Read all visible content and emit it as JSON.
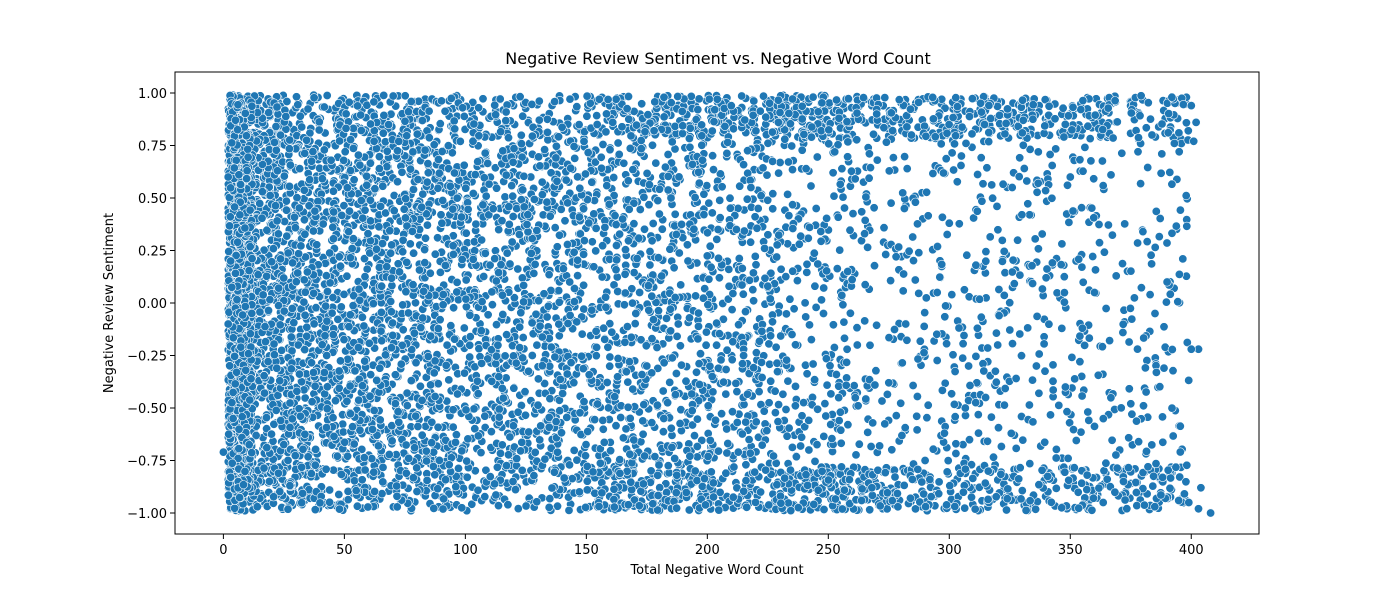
{
  "chart_data": {
    "type": "scatter",
    "title": "Negative Review Sentiment vs. Negative Word Count",
    "xlabel": "Total Negative Word Count",
    "ylabel": "Negative Review Sentiment",
    "xlim": [
      -20,
      428
    ],
    "ylim": [
      -1.1,
      1.1
    ],
    "xticks": [
      0,
      50,
      100,
      150,
      200,
      250,
      300,
      350,
      400
    ],
    "yticks": [
      -1.0,
      -0.75,
      -0.5,
      -0.25,
      0.0,
      0.25,
      0.5,
      0.75,
      1.0
    ],
    "xtick_labels": [
      "0",
      "50",
      "100",
      "150",
      "200",
      "250",
      "300",
      "350",
      "400"
    ],
    "ytick_labels": [
      "−1.00",
      "−0.75",
      "−0.50",
      "−0.25",
      "0.00",
      "0.25",
      "0.50",
      "0.75",
      "1.00"
    ],
    "grid": false,
    "marker_color": "#1f77b4",
    "marker_edge_color": "#ffffff",
    "series": [
      {
        "points": [
          [
            0,
            -0.71
          ],
          [
            408,
            -1.0
          ],
          [
            403,
            -0.22
          ],
          [
            400,
            -0.22
          ],
          [
            402,
            0.86
          ],
          [
            401,
            0.77
          ],
          [
            400,
            0.94
          ],
          [
            395,
            0.72
          ],
          [
            390,
            0.1
          ],
          [
            392,
            0.98
          ],
          [
            403,
            -0.98
          ],
          [
            404,
            -0.88
          ],
          [
            399,
            -0.95
          ],
          [
            14,
            -0.97
          ],
          [
            3,
            -0.83
          ],
          [
            5,
            0.87
          ],
          [
            4,
            -0.55
          ],
          [
            2,
            0.6
          ],
          [
            3,
            0.2
          ],
          [
            2,
            -0.1
          ],
          [
            385,
            -0.05
          ],
          [
            383,
            0.04
          ],
          [
            380,
            0.34
          ],
          [
            378,
            0.72
          ],
          [
            375,
            -0.48
          ],
          [
            372,
            -0.85
          ],
          [
            360,
            0.05
          ],
          [
            355,
            -0.12
          ],
          [
            350,
            0.6
          ],
          [
            348,
            -0.4
          ],
          [
            340,
            0.12
          ],
          [
            336,
            -0.3
          ],
          [
            330,
            0.42
          ],
          [
            326,
            0.55
          ],
          [
            320,
            -0.2
          ],
          [
            315,
            -0.45
          ],
          [
            311,
            0.18
          ],
          [
            308,
            -0.3
          ],
          [
            305,
            0.7
          ],
          [
            300,
            0.38
          ],
          [
            298,
            -0.62
          ],
          [
            295,
            0.05
          ],
          [
            290,
            -0.75
          ],
          [
            286,
            0.48
          ],
          [
            282,
            -0.1
          ],
          [
            278,
            0.22
          ],
          [
            275,
            -0.38
          ],
          [
            270,
            0.9
          ],
          [
            268,
            -0.88
          ],
          [
            265,
            0.33
          ],
          [
            262,
            -0.2
          ],
          [
            258,
            0.15
          ],
          [
            255,
            -0.52
          ],
          [
            252,
            0.62
          ],
          [
            248,
            -0.05
          ],
          [
            245,
            0.45
          ],
          [
            242,
            -0.7
          ],
          [
            238,
            0.28
          ],
          [
            235,
            -0.15
          ],
          [
            232,
            0.78
          ],
          [
            228,
            -0.42
          ],
          [
            225,
            0.08
          ],
          [
            222,
            -0.9
          ],
          [
            218,
            0.55
          ],
          [
            215,
            -0.25
          ],
          [
            212,
            0.35
          ],
          [
            208,
            -0.6
          ],
          [
            205,
            0.12
          ],
          [
            202,
            -0.35
          ],
          [
            198,
            0.68
          ],
          [
            195,
            -0.8
          ],
          [
            192,
            0.2
          ],
          [
            188,
            -0.1
          ],
          [
            185,
            0.5
          ],
          [
            182,
            -0.55
          ],
          [
            178,
            0.82
          ],
          [
            175,
            -0.3
          ],
          [
            172,
            0.05
          ],
          [
            168,
            -0.72
          ],
          [
            165,
            0.4
          ]
        ]
      }
    ]
  }
}
